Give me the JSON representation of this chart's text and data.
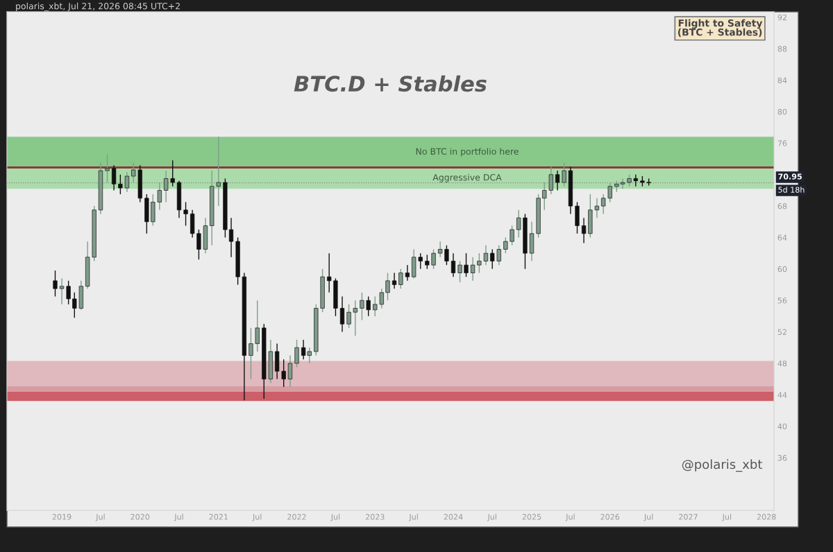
{
  "chart_data": {
    "type": "candlestick",
    "title": "BTC.D + Stables",
    "colors": [
      "#111111",
      "#7f9c8a",
      "#111111",
      "#111111",
      "#7f9c8a",
      "#7f9c8a",
      "#7f9c8a",
      "#7f9c8a",
      "#7f9c8a",
      "#111111",
      "#111111",
      "#7f9c8a",
      "#7f9c8a",
      "#111111",
      "#111111",
      "#7f9c8a",
      "#7f9c8a",
      "#7f9c8a",
      "#111111",
      "#111111",
      "#111111",
      "#111111",
      "#111111",
      "#7f9c8a",
      "#7f9c8a",
      "#7f9c8a",
      "#111111",
      "#111111",
      "#111111",
      "#111111",
      "#7f9c8a",
      "#7f9c8a",
      "#111111",
      "#7f9c8a",
      "#111111",
      "#111111",
      "#7f9c8a",
      "#7f9c8a",
      "#111111",
      "#7f9c8a",
      "#7f9c8a",
      "#7f9c8a",
      "#111111",
      "#111111",
      "#111111",
      "#7f9c8a",
      "#7f9c8a",
      "#7f9c8a",
      "#111111",
      "#7f9c8a",
      "#7f9c8a",
      "#7f9c8a",
      "#111111",
      "#7f9c8a",
      "#111111",
      "#7f9c8a",
      "#111111",
      "#111111",
      "#7f9c8a",
      "#7f9c8a",
      "#111111",
      "#111111",
      "#7f9c8a",
      "#111111",
      "#7f9c8a",
      "#7f9c8a",
      "#7f9c8a",
      "#111111",
      "#7f9c8a",
      "#7f9c8a",
      "#7f9c8a",
      "#7f9c8a",
      "#111111",
      "#7f9c8a",
      "#7f9c8a",
      "#7f9c8a",
      "#7f9c8a",
      "#111111",
      "#7f9c8a",
      "#111111",
      "#111111",
      "#111111",
      "#7f9c8a",
      "#7f9c8a",
      "#7f9c8a",
      "#7f9c8a",
      "#7f9c8a",
      "#7f9c8a",
      "#7f9c8a",
      "#111111",
      "#111111",
      "#111111"
    ],
    "x": [
      "2018-12",
      "2019-01",
      "2019-02",
      "2019-03",
      "2019-04",
      "2019-05",
      "2019-06",
      "2019-07",
      "2019-08",
      "2019-09",
      "2019-10",
      "2019-11",
      "2019-12",
      "2020-01",
      "2020-02",
      "2020-03",
      "2020-04",
      "2020-05",
      "2020-06",
      "2020-07",
      "2020-08",
      "2020-09",
      "2020-10",
      "2020-11",
      "2020-12",
      "2021-01",
      "2021-02",
      "2021-03",
      "2021-04",
      "2021-05",
      "2021-06",
      "2021-07",
      "2021-08",
      "2021-09",
      "2021-10",
      "2021-11",
      "2021-12",
      "2022-01",
      "2022-02",
      "2022-03",
      "2022-04",
      "2022-05",
      "2022-06",
      "2022-07",
      "2022-08",
      "2022-09",
      "2022-10",
      "2022-11",
      "2022-12",
      "2023-01",
      "2023-02",
      "2023-03",
      "2023-04",
      "2023-05",
      "2023-06",
      "2023-07",
      "2023-08",
      "2023-09",
      "2023-10",
      "2023-11",
      "2023-12",
      "2024-01",
      "2024-02",
      "2024-03",
      "2024-04",
      "2024-05",
      "2024-06",
      "2024-07",
      "2024-08",
      "2024-09",
      "2024-10",
      "2024-11",
      "2024-12",
      "2025-01",
      "2025-02",
      "2025-03",
      "2025-04",
      "2025-05",
      "2025-06",
      "2025-07",
      "2025-08",
      "2025-09",
      "2025-10",
      "2025-11",
      "2025-12",
      "2026-01",
      "2026-02",
      "2026-03",
      "2026-04",
      "2026-05",
      "2026-06",
      "2026-07"
    ],
    "ohlc": [
      [
        58.5,
        59.8,
        56.5,
        57.5
      ],
      [
        57.5,
        58.8,
        55.5,
        57.8
      ],
      [
        57.8,
        58.5,
        55.5,
        56.2
      ],
      [
        56.2,
        57.0,
        53.8,
        55.0
      ],
      [
        55.0,
        58.5,
        54.8,
        57.8
      ],
      [
        57.8,
        63.5,
        57.5,
        61.5
      ],
      [
        61.5,
        68.0,
        61.0,
        67.5
      ],
      [
        67.5,
        73.5,
        67.0,
        72.5
      ],
      [
        72.5,
        74.6,
        71.0,
        72.8
      ],
      [
        72.8,
        73.2,
        70.0,
        70.8
      ],
      [
        70.8,
        72.0,
        69.5,
        70.3
      ],
      [
        70.3,
        72.3,
        69.8,
        71.8
      ],
      [
        71.8,
        73.5,
        71.0,
        72.6
      ],
      [
        72.6,
        73.2,
        68.5,
        69.0
      ],
      [
        69.0,
        69.5,
        64.5,
        66.0
      ],
      [
        66.0,
        69.5,
        65.5,
        68.5
      ],
      [
        68.5,
        71.0,
        67.5,
        70.0
      ],
      [
        70.0,
        72.5,
        68.5,
        71.5
      ],
      [
        71.5,
        73.8,
        70.5,
        71.0
      ],
      [
        71.0,
        71.2,
        66.5,
        67.5
      ],
      [
        67.5,
        68.5,
        65.5,
        67.0
      ],
      [
        67.0,
        67.5,
        64.0,
        64.5
      ],
      [
        64.5,
        65.0,
        61.2,
        62.5
      ],
      [
        62.5,
        66.5,
        62.0,
        65.5
      ],
      [
        65.5,
        72.5,
        63.0,
        70.5
      ],
      [
        70.5,
        76.8,
        68.0,
        71.0
      ],
      [
        71.0,
        71.5,
        64.0,
        65.0
      ],
      [
        65.0,
        66.5,
        61.5,
        63.5
      ],
      [
        63.5,
        64.0,
        58.0,
        59.0
      ],
      [
        59.0,
        59.5,
        43.3,
        49.0
      ],
      [
        49.0,
        52.5,
        46.0,
        50.5
      ],
      [
        50.5,
        56.0,
        49.5,
        52.5
      ],
      [
        52.5,
        53.0,
        43.5,
        46.0
      ],
      [
        46.0,
        51.0,
        45.5,
        49.5
      ],
      [
        49.5,
        50.5,
        46.0,
        47.0
      ],
      [
        47.0,
        48.5,
        45.0,
        46.0
      ],
      [
        46.0,
        49.0,
        45.0,
        48.0
      ],
      [
        48.0,
        51.0,
        47.5,
        50.0
      ],
      [
        50.0,
        51.0,
        48.5,
        49.0
      ],
      [
        49.0,
        50.0,
        48.0,
        49.5
      ],
      [
        49.5,
        55.5,
        49.0,
        55.0
      ],
      [
        55.0,
        60.0,
        54.5,
        59.0
      ],
      [
        59.0,
        62.0,
        57.0,
        58.5
      ],
      [
        58.5,
        58.8,
        54.0,
        55.0
      ],
      [
        55.0,
        56.5,
        52.0,
        53.0
      ],
      [
        53.0,
        55.5,
        52.5,
        54.5
      ],
      [
        54.5,
        56.0,
        51.5,
        55.0
      ],
      [
        55.0,
        57.0,
        53.5,
        56.0
      ],
      [
        56.0,
        56.5,
        54.0,
        54.8
      ],
      [
        54.8,
        56.5,
        54.0,
        55.5
      ],
      [
        55.5,
        57.5,
        55.0,
        57.0
      ],
      [
        57.0,
        59.5,
        56.0,
        58.5
      ],
      [
        58.5,
        59.5,
        57.5,
        58.0
      ],
      [
        58.0,
        60.0,
        57.5,
        59.5
      ],
      [
        59.5,
        60.5,
        58.5,
        59.0
      ],
      [
        59.0,
        62.5,
        58.8,
        61.5
      ],
      [
        61.5,
        62.0,
        60.0,
        61.0
      ],
      [
        61.0,
        61.8,
        60.0,
        60.5
      ],
      [
        60.5,
        62.5,
        60.0,
        62.0
      ],
      [
        62.0,
        63.5,
        61.5,
        62.5
      ],
      [
        62.5,
        63.0,
        60.5,
        61.0
      ],
      [
        61.0,
        62.0,
        59.0,
        59.5
      ],
      [
        59.5,
        61.0,
        58.3,
        60.5
      ],
      [
        60.5,
        62.0,
        59.0,
        59.5
      ],
      [
        59.5,
        61.5,
        58.5,
        60.5
      ],
      [
        60.5,
        62.0,
        59.5,
        61.0
      ],
      [
        61.0,
        63.0,
        60.5,
        62.0
      ],
      [
        62.0,
        62.5,
        60.0,
        61.0
      ],
      [
        61.0,
        63.0,
        60.5,
        62.5
      ],
      [
        62.5,
        64.0,
        62.0,
        63.5
      ],
      [
        63.5,
        65.5,
        63.0,
        65.0
      ],
      [
        65.0,
        67.5,
        64.0,
        66.5
      ],
      [
        66.5,
        67.0,
        60.0,
        62.0
      ],
      [
        62.0,
        66.0,
        61.0,
        64.5
      ],
      [
        64.5,
        69.5,
        64.0,
        69.0
      ],
      [
        69.0,
        71.0,
        67.5,
        70.0
      ],
      [
        70.0,
        73.0,
        69.5,
        72.0
      ],
      [
        72.0,
        72.5,
        70.0,
        71.0
      ],
      [
        71.0,
        73.5,
        70.5,
        72.5
      ],
      [
        72.5,
        73.0,
        67.0,
        68.0
      ],
      [
        68.0,
        68.5,
        64.5,
        65.5
      ],
      [
        65.5,
        66.5,
        63.3,
        64.5
      ],
      [
        64.5,
        69.5,
        64.0,
        67.5
      ],
      [
        67.5,
        69.0,
        66.5,
        68.0
      ],
      [
        68.0,
        69.5,
        67.0,
        69.0
      ],
      [
        69.0,
        71.0,
        68.5,
        70.5
      ],
      [
        70.5,
        71.2,
        69.8,
        70.8
      ],
      [
        70.8,
        71.5,
        70.2,
        71.0
      ],
      [
        71.0,
        72.0,
        70.5,
        71.5
      ],
      [
        71.5,
        72.0,
        70.5,
        71.2
      ],
      [
        71.2,
        71.8,
        70.5,
        71.0
      ],
      [
        71.0,
        71.5,
        70.6,
        70.95
      ]
    ],
    "xlim": [
      "2018-04-20",
      "2028-02-05"
    ],
    "xticks": [
      {
        "value": "2019-01-01",
        "label": "2019"
      },
      {
        "value": "2019-07-01",
        "label": "Jul"
      },
      {
        "value": "2020-01-01",
        "label": "2020"
      },
      {
        "value": "2020-07-01",
        "label": "Jul"
      },
      {
        "value": "2021-01-01",
        "label": "2021"
      },
      {
        "value": "2021-07-01",
        "label": "Jul"
      },
      {
        "value": "2022-01-01",
        "label": "2022"
      },
      {
        "value": "2022-07-01",
        "label": "Jul"
      },
      {
        "value": "2023-01-01",
        "label": "2023"
      },
      {
        "value": "2023-07-01",
        "label": "Jul"
      },
      {
        "value": "2024-01-01",
        "label": "2024"
      },
      {
        "value": "2024-07-01",
        "label": "Jul"
      },
      {
        "value": "2025-01-01",
        "label": "2025"
      },
      {
        "value": "2025-07-01",
        "label": "Jul"
      },
      {
        "value": "2026-01-01",
        "label": "2026"
      },
      {
        "value": "2026-07-01",
        "label": "Jul"
      },
      {
        "value": "2027-01-01",
        "label": "2027"
      },
      {
        "value": "2027-07-01",
        "label": "Jul"
      },
      {
        "value": "2028-01-01",
        "label": "2028"
      }
    ],
    "ylim": [
      29.3,
      92.7
    ],
    "yticks": [
      36,
      40,
      44,
      48,
      52,
      56,
      60,
      64,
      68,
      72,
      76,
      80,
      84,
      88,
      92
    ],
    "grid": false,
    "bands": [
      {
        "axis": "y",
        "from": 72.9,
        "to": 76.8,
        "label": "No BTC in portfolio here",
        "color": "#88c98a"
      },
      {
        "axis": "y",
        "from": 70.2,
        "to": 72.9,
        "label": "Aggressive DCA",
        "color": "#acdbab"
      },
      {
        "axis": "y",
        "from": 45.1,
        "to": 48.3,
        "color": "#dfb9bd"
      },
      {
        "axis": "y",
        "from": 44.4,
        "to": 45.1,
        "color": "#d79ca2"
      },
      {
        "axis": "y",
        "from": 43.2,
        "to": 44.4,
        "color": "#cc5f68"
      }
    ],
    "ref_lines": [
      {
        "axis": "y",
        "value": 72.9,
        "color": "#8b3a3a",
        "line_style": "solid"
      },
      {
        "axis": "y",
        "value": 70.95,
        "label": "70.95",
        "color": "#888888",
        "line_style": "dotted"
      }
    ],
    "annotations": [
      "polaris_xbt, Jul 21, 2026 08:45 UTC+2",
      "Flight to Safety\n(BTC + Stables)",
      "@polaris_xbt",
      "5d 18h"
    ]
  }
}
